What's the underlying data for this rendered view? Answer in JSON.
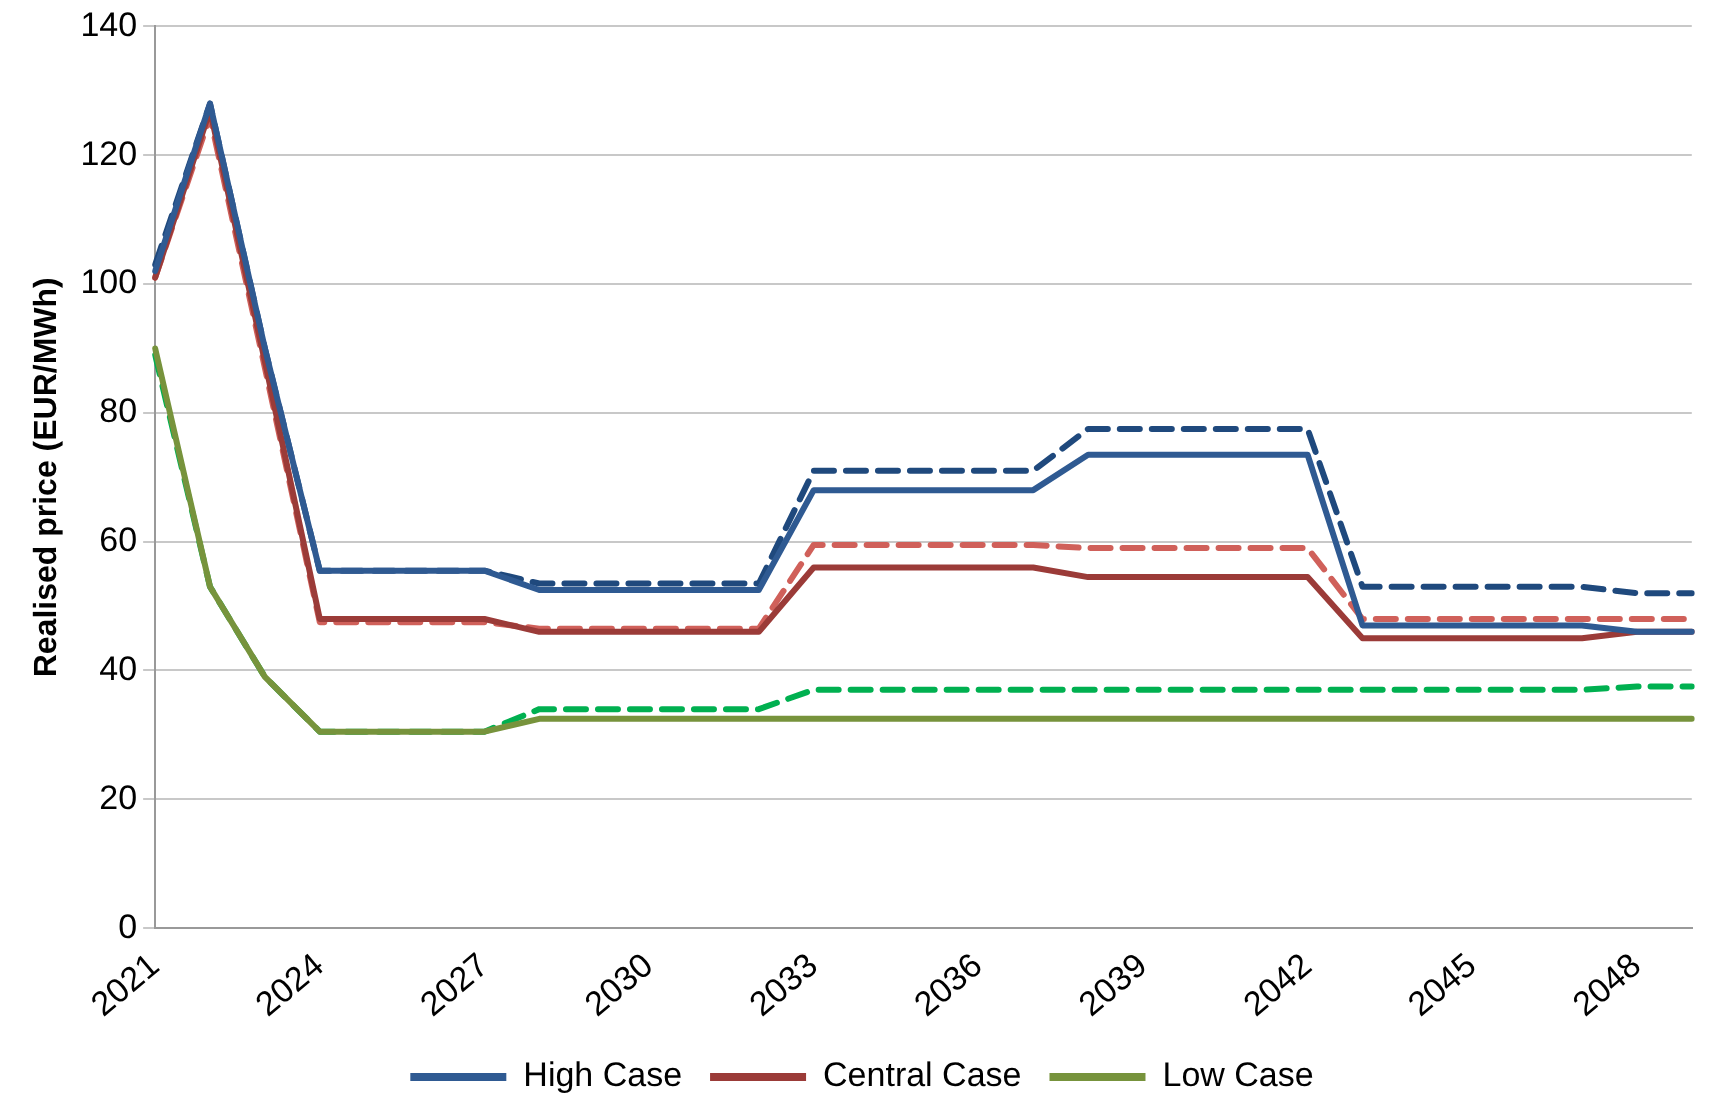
{
  "chart_data": {
    "type": "line",
    "ylabel": "Realised price (EUR/MWh)",
    "categories": [
      "2021",
      null,
      null,
      "2024",
      null,
      null,
      "2027",
      null,
      null,
      "2030",
      null,
      null,
      "2033",
      null,
      null,
      "2036",
      null,
      null,
      "2039",
      null,
      null,
      "2042",
      null,
      null,
      "2045",
      null,
      null,
      "2048",
      null
    ],
    "ylim": [
      0,
      140
    ],
    "yticks": [
      0,
      20,
      40,
      60,
      80,
      100,
      120,
      140
    ],
    "grid": "y",
    "legend": "bottom",
    "marker": "none",
    "series": [
      {
        "name": "High Case",
        "color": "#2f5a92",
        "line_style": "solid",
        "values": [
          102,
          128,
          90,
          55.5,
          55.5,
          55.5,
          55.5,
          52.5,
          52.5,
          52.5,
          52.5,
          52.5,
          68,
          68,
          68,
          68,
          68,
          73.5,
          73.5,
          73.5,
          73.5,
          73.5,
          47,
          47,
          47,
          47,
          47,
          46,
          46
        ]
      },
      {
        "name": "Central Case",
        "color": "#9b3b38",
        "line_style": "solid",
        "values": [
          101,
          127,
          88,
          48,
          48,
          48,
          48,
          46,
          46,
          46,
          46,
          46,
          56,
          56,
          56,
          56,
          56,
          54.5,
          54.5,
          54.5,
          54.5,
          54.5,
          45,
          45,
          45,
          45,
          45,
          46,
          46
        ]
      },
      {
        "name": "Low Case",
        "color": "#77933c",
        "line_style": "solid",
        "values": [
          90,
          53,
          39,
          30.5,
          30.5,
          30.5,
          30.5,
          32.5,
          32.5,
          32.5,
          32.5,
          32.5,
          32.5,
          32.5,
          32.5,
          32.5,
          32.5,
          32.5,
          32.5,
          32.5,
          32.5,
          32.5,
          32.5,
          32.5,
          32.5,
          32.5,
          32.5,
          32.5,
          32.5
        ]
      },
      {
        "color": "#1f497d",
        "line_style": "dashed",
        "values": [
          103,
          128,
          90,
          55.5,
          55.5,
          55.5,
          55.5,
          53.5,
          53.5,
          53.5,
          53.5,
          53.5,
          71,
          71,
          71,
          71,
          71,
          77.5,
          77.5,
          77.5,
          77.5,
          77.5,
          53,
          53,
          53,
          53,
          53,
          52,
          52
        ]
      },
      {
        "color": "#d0605a",
        "line_style": "dashed",
        "values": [
          101,
          126,
          87,
          47.5,
          47.5,
          47.5,
          47.5,
          46.5,
          46.5,
          46.5,
          46.5,
          46.5,
          59.5,
          59.5,
          59.5,
          59.5,
          59.5,
          59,
          59,
          59,
          59,
          59,
          48,
          48,
          48,
          48,
          48,
          48,
          48
        ]
      },
      {
        "color": "#00b050",
        "line_style": "dashed",
        "values": [
          89,
          53,
          39,
          30.5,
          30.5,
          30.5,
          30.5,
          34,
          34,
          34,
          34,
          34,
          37,
          37,
          37,
          37,
          37,
          37,
          37,
          37,
          37,
          37,
          37,
          37,
          37,
          37,
          37,
          37.5,
          37.5
        ]
      }
    ]
  }
}
